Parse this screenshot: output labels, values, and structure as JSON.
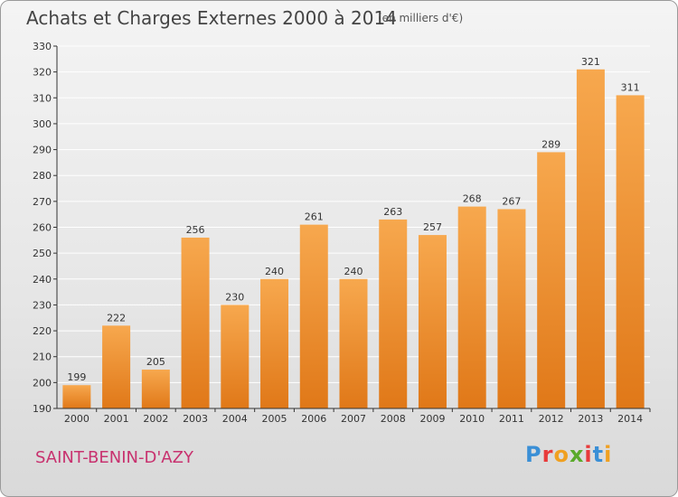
{
  "header": {
    "title": "Achats et Charges Externes 2000 à 2014",
    "subtitle": "(en milliers d'€)"
  },
  "footer": {
    "place": "SAINT-BENIN-D'AZY",
    "logo": "Proxiti",
    "logo_colors": [
      "#3a8fd6",
      "#e83a3a",
      "#f0a020",
      "#5aaa2a",
      "#e83a3a",
      "#3a8fd6",
      "#f0a020"
    ]
  },
  "colors": {
    "bar_top": "#f7a84e",
    "bar_bottom": "#e07818",
    "grid": "#ffffff",
    "axis": "#333333"
  },
  "chart_data": {
    "type": "bar",
    "categories": [
      "2000",
      "2001",
      "2002",
      "2003",
      "2004",
      "2005",
      "2006",
      "2007",
      "2008",
      "2009",
      "2010",
      "2011",
      "2012",
      "2013",
      "2014"
    ],
    "values": [
      199,
      222,
      205,
      256,
      230,
      240,
      261,
      240,
      263,
      257,
      268,
      267,
      289,
      321,
      311
    ],
    "title": "Achats et Charges Externes 2000 à 2014",
    "ylim": [
      190,
      330
    ],
    "yticks": [
      190,
      200,
      210,
      220,
      230,
      240,
      250,
      260,
      270,
      280,
      290,
      300,
      310,
      320,
      330
    ],
    "grid": true
  }
}
